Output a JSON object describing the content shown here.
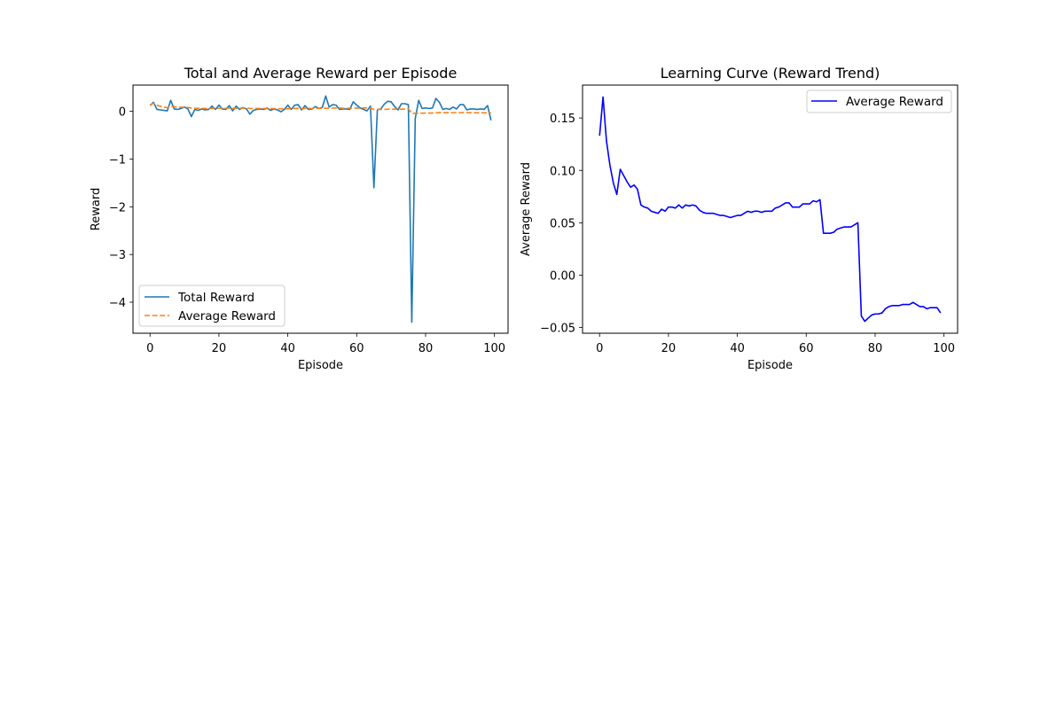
{
  "colors": {
    "total_reward": "#1f77b4",
    "average_reward_left": "#ff7f0e",
    "average_reward_right": "#0000ff"
  },
  "chart_data": [
    {
      "type": "line",
      "title": "Total and Average Reward per Episode",
      "xlabel": "Episode",
      "ylabel": "Reward",
      "xlim": [
        -4.95,
        103.95
      ],
      "ylim": [
        -4.65,
        0.55
      ],
      "xticks": [
        0,
        20,
        40,
        60,
        80,
        100
      ],
      "yticks": [
        0,
        -1,
        -2,
        -3,
        -4
      ],
      "ytick_labels": [
        "0",
        "−1",
        "−2",
        "−3",
        "−4"
      ],
      "legend": "lower-left",
      "grid": false,
      "series": [
        {
          "name": "Total Reward",
          "style": "solid",
          "values": [
            0.12,
            0.19,
            0.04,
            0.03,
            0.02,
            0.01,
            0.23,
            0.05,
            0.04,
            0.06,
            0.09,
            0.05,
            -0.11,
            0.04,
            0.02,
            0.05,
            0.03,
            0.04,
            0.11,
            0.04,
            0.13,
            0.05,
            0.04,
            0.12,
            0.01,
            0.11,
            0.04,
            0.08,
            0.05,
            -0.06,
            0.02,
            0.04,
            0.05,
            0.04,
            0.07,
            0.02,
            0.05,
            0.03,
            -0.01,
            0.04,
            0.13,
            0.04,
            0.13,
            0.14,
            0.03,
            0.12,
            0.04,
            0.05,
            0.1,
            0.06,
            0.08,
            0.32,
            0.09,
            0.14,
            0.13,
            0.04,
            0.05,
            0.05,
            0.04,
            0.2,
            0.13,
            0.07,
            0.04,
            0.01,
            0.11,
            -1.6,
            0.03,
            0.05,
            0.15,
            0.21,
            0.2,
            0.1,
            0.03,
            0.16,
            0.16,
            0.14,
            -4.42,
            -0.15,
            0.23,
            0.06,
            0.07,
            0.06,
            0.07,
            0.27,
            0.19,
            0.04,
            0.06,
            0.04,
            0.09,
            0.05,
            0.14,
            0.14,
            0.03,
            0.05,
            0.05,
            0.04,
            0.05,
            0.04,
            0.12,
            -0.19
          ]
        },
        {
          "name": "Average Reward",
          "style": "dashed",
          "values": [
            0.13,
            0.17,
            0.13,
            0.105,
            0.088,
            0.077,
            0.101,
            0.095,
            0.089,
            0.084,
            0.086,
            0.082,
            0.067,
            0.065,
            0.064,
            0.061,
            0.06,
            0.059,
            0.063,
            0.061,
            0.065,
            0.065,
            0.064,
            0.067,
            0.064,
            0.067,
            0.066,
            0.067,
            0.066,
            0.062,
            0.06,
            0.059,
            0.059,
            0.059,
            0.058,
            0.057,
            0.057,
            0.056,
            0.055,
            0.056,
            0.057,
            0.057,
            0.059,
            0.061,
            0.06,
            0.061,
            0.061,
            0.06,
            0.061,
            0.061,
            0.061,
            0.064,
            0.065,
            0.067,
            0.069,
            0.069,
            0.065,
            0.065,
            0.065,
            0.068,
            0.068,
            0.068,
            0.071,
            0.07,
            0.072,
            0.04,
            0.04,
            0.04,
            0.041,
            0.044,
            0.045,
            0.046,
            0.046,
            0.046,
            0.048,
            0.05,
            -0.039,
            -0.044,
            -0.041,
            -0.038,
            -0.037,
            -0.037,
            -0.036,
            -0.032,
            -0.03,
            -0.029,
            -0.029,
            -0.029,
            -0.028,
            -0.028,
            -0.028,
            -0.026,
            -0.028,
            -0.03,
            -0.03,
            -0.032,
            -0.031,
            -0.031,
            -0.031,
            -0.036
          ]
        }
      ]
    },
    {
      "type": "line",
      "title": "Learning Curve (Reward Trend)",
      "xlabel": "Episode",
      "ylabel": "Average Reward",
      "xlim": [
        -4.95,
        103.95
      ],
      "ylim": [
        -0.0554,
        0.1814
      ],
      "xticks": [
        0,
        20,
        40,
        60,
        80,
        100
      ],
      "yticks": [
        -0.05,
        0.0,
        0.05,
        0.1,
        0.15
      ],
      "ytick_labels": [
        "−0.05",
        "0.00",
        "0.05",
        "0.10",
        "0.15"
      ],
      "legend": "upper-right",
      "grid": false,
      "series": [
        {
          "name": "Average Reward",
          "style": "solid",
          "values": [
            0.133,
            0.17,
            0.128,
            0.105,
            0.088,
            0.077,
            0.101,
            0.095,
            0.089,
            0.084,
            0.086,
            0.082,
            0.067,
            0.065,
            0.064,
            0.061,
            0.06,
            0.059,
            0.063,
            0.061,
            0.065,
            0.065,
            0.064,
            0.067,
            0.064,
            0.067,
            0.066,
            0.067,
            0.066,
            0.062,
            0.06,
            0.059,
            0.059,
            0.059,
            0.058,
            0.057,
            0.057,
            0.056,
            0.055,
            0.056,
            0.057,
            0.057,
            0.059,
            0.061,
            0.06,
            0.061,
            0.061,
            0.06,
            0.061,
            0.061,
            0.061,
            0.064,
            0.065,
            0.067,
            0.069,
            0.069,
            0.065,
            0.065,
            0.065,
            0.068,
            0.068,
            0.068,
            0.071,
            0.07,
            0.072,
            0.04,
            0.04,
            0.04,
            0.041,
            0.044,
            0.045,
            0.046,
            0.046,
            0.046,
            0.048,
            0.05,
            -0.039,
            -0.044,
            -0.041,
            -0.038,
            -0.037,
            -0.037,
            -0.036,
            -0.032,
            -0.03,
            -0.029,
            -0.029,
            -0.029,
            -0.028,
            -0.028,
            -0.028,
            -0.026,
            -0.028,
            -0.03,
            -0.03,
            -0.032,
            -0.031,
            -0.031,
            -0.031,
            -0.036
          ]
        }
      ]
    }
  ]
}
